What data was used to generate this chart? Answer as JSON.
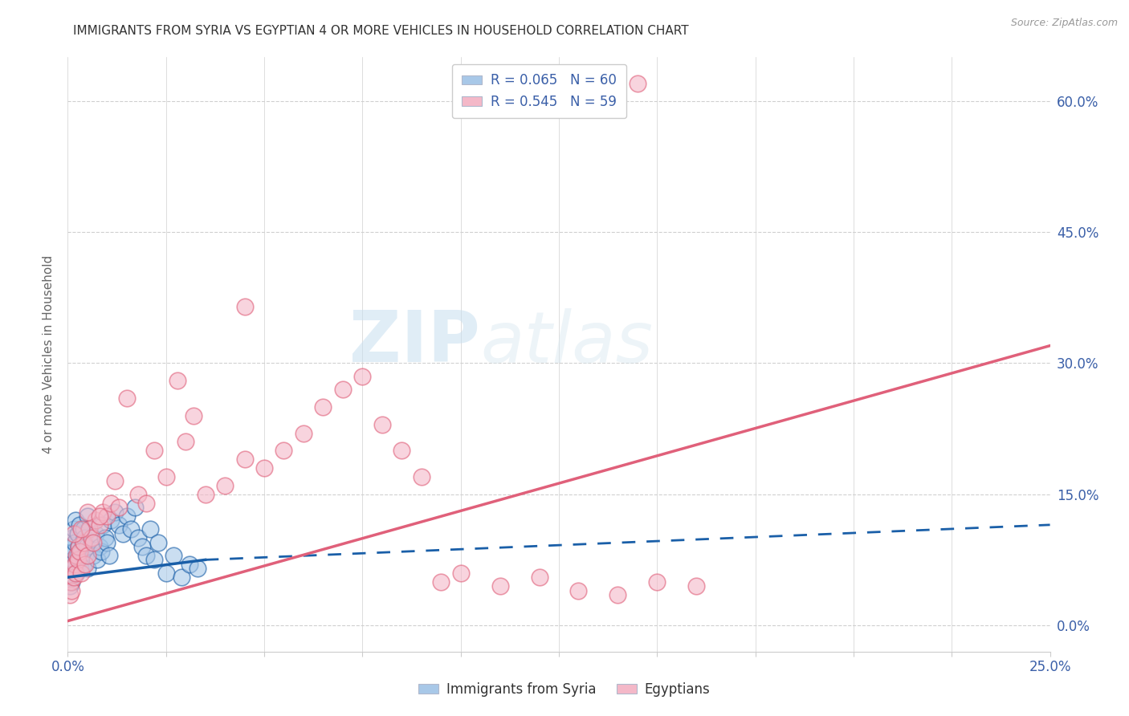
{
  "title": "IMMIGRANTS FROM SYRIA VS EGYPTIAN 4 OR MORE VEHICLES IN HOUSEHOLD CORRELATION CHART",
  "source": "Source: ZipAtlas.com",
  "ylabel": "4 or more Vehicles in Household",
  "yticks_right": [
    "0.0%",
    "15.0%",
    "30.0%",
    "45.0%",
    "60.0%"
  ],
  "yticks_right_vals": [
    0.0,
    15.0,
    30.0,
    45.0,
    60.0
  ],
  "legend_entry1": "R = 0.065   N = 60",
  "legend_entry2": "R = 0.545   N = 59",
  "legend_label1": "Immigrants from Syria",
  "legend_label2": "Egyptians",
  "color_blue": "#a8c8e8",
  "color_pink": "#f4b8c8",
  "color_blue_line": "#1a5fa8",
  "color_pink_line": "#e0607a",
  "background_color": "#ffffff",
  "watermark_zip": "ZIP",
  "watermark_atlas": "atlas",
  "xmin": 0.0,
  "xmax": 25.0,
  "ymin": -3.0,
  "ymax": 65.0,
  "blue_line_x0": 0.0,
  "blue_line_y0": 5.5,
  "blue_line_x1": 3.5,
  "blue_line_y1": 7.5,
  "blue_dash_x0": 3.5,
  "blue_dash_y0": 7.5,
  "blue_dash_x1": 25.0,
  "blue_dash_y1": 11.5,
  "pink_line_x0": 0.0,
  "pink_line_y0": 0.5,
  "pink_line_x1": 25.0,
  "pink_line_y1": 32.0,
  "syria_x": [
    0.05,
    0.05,
    0.07,
    0.08,
    0.09,
    0.1,
    0.1,
    0.12,
    0.12,
    0.14,
    0.15,
    0.15,
    0.18,
    0.2,
    0.2,
    0.22,
    0.25,
    0.25,
    0.28,
    0.3,
    0.3,
    0.32,
    0.35,
    0.38,
    0.4,
    0.4,
    0.42,
    0.45,
    0.48,
    0.5,
    0.5,
    0.55,
    0.6,
    0.65,
    0.7,
    0.75,
    0.8,
    0.85,
    0.9,
    0.95,
    1.0,
    1.05,
    1.1,
    1.2,
    1.3,
    1.4,
    1.5,
    1.6,
    1.7,
    1.8,
    1.9,
    2.0,
    2.1,
    2.2,
    2.3,
    2.5,
    2.7,
    2.9,
    3.1,
    3.3
  ],
  "syria_y": [
    4.5,
    6.0,
    5.5,
    8.0,
    7.0,
    9.0,
    5.0,
    6.5,
    10.0,
    7.5,
    8.5,
    11.0,
    9.5,
    7.0,
    12.0,
    6.0,
    8.0,
    10.5,
    9.0,
    11.5,
    7.5,
    6.5,
    8.5,
    9.5,
    7.0,
    11.0,
    10.0,
    8.0,
    9.0,
    6.5,
    12.5,
    11.0,
    9.5,
    8.0,
    10.5,
    7.5,
    9.0,
    8.5,
    11.5,
    10.0,
    9.5,
    8.0,
    12.0,
    13.0,
    11.5,
    10.5,
    12.5,
    11.0,
    13.5,
    10.0,
    9.0,
    8.0,
    11.0,
    7.5,
    9.5,
    6.0,
    8.0,
    5.5,
    7.0,
    6.5
  ],
  "egypt_x": [
    0.05,
    0.07,
    0.1,
    0.12,
    0.15,
    0.18,
    0.2,
    0.22,
    0.25,
    0.28,
    0.3,
    0.35,
    0.4,
    0.45,
    0.5,
    0.55,
    0.6,
    0.65,
    0.7,
    0.8,
    0.9,
    1.0,
    1.1,
    1.3,
    1.5,
    1.8,
    2.0,
    2.5,
    2.8,
    3.0,
    3.5,
    4.0,
    4.5,
    5.0,
    5.5,
    6.0,
    6.5,
    7.0,
    7.5,
    8.0,
    8.5,
    9.0,
    9.5,
    10.0,
    11.0,
    12.0,
    13.0,
    14.0,
    15.0,
    16.0,
    0.15,
    0.35,
    0.5,
    0.8,
    1.2,
    2.2,
    3.2,
    4.5,
    14.5
  ],
  "egypt_y": [
    3.5,
    5.0,
    4.0,
    6.5,
    5.5,
    7.0,
    6.0,
    8.0,
    7.5,
    9.0,
    8.5,
    6.0,
    9.5,
    7.0,
    8.0,
    11.0,
    10.0,
    9.5,
    12.0,
    11.5,
    13.0,
    12.5,
    14.0,
    13.5,
    26.0,
    15.0,
    14.0,
    17.0,
    28.0,
    21.0,
    15.0,
    16.0,
    19.0,
    18.0,
    20.0,
    22.0,
    25.0,
    27.0,
    28.5,
    23.0,
    20.0,
    17.0,
    5.0,
    6.0,
    4.5,
    5.5,
    4.0,
    3.5,
    5.0,
    4.5,
    10.5,
    11.0,
    13.0,
    12.5,
    16.5,
    20.0,
    24.0,
    36.5,
    62.0
  ]
}
